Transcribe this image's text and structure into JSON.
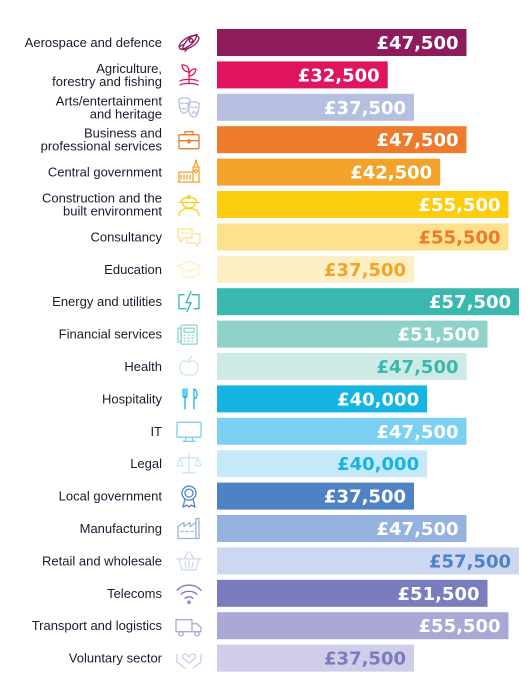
{
  "chart_data": {
    "type": "bar",
    "orientation": "horizontal",
    "xlim": [
      0,
      57500
    ],
    "categories": [
      [
        "Aerospace and defence"
      ],
      [
        "Agriculture,",
        "forestry and fishing"
      ],
      [
        "Arts/entertainment",
        "and heritage"
      ],
      [
        "Business and",
        "professional services"
      ],
      [
        "Central government"
      ],
      [
        "Construction and the",
        "built environment"
      ],
      [
        "Consultancy"
      ],
      [
        "Education"
      ],
      [
        "Energy and utilities"
      ],
      [
        "Financial services"
      ],
      [
        "Health"
      ],
      [
        "Hospitality"
      ],
      [
        "IT"
      ],
      [
        "Legal"
      ],
      [
        "Local government"
      ],
      [
        "Manufacturing"
      ],
      [
        "Retail and wholesale"
      ],
      [
        "Telecoms"
      ],
      [
        "Transport and logistics"
      ],
      [
        "Voluntary sector"
      ]
    ],
    "values": [
      47500,
      32500,
      37500,
      47500,
      42500,
      55500,
      55500,
      37500,
      57500,
      51500,
      47500,
      40000,
      47500,
      40000,
      37500,
      47500,
      57500,
      51500,
      55500,
      37500
    ],
    "value_labels": [
      "£47,500",
      "£32,500",
      "£37,500",
      "£47,500",
      "£42,500",
      "£55,500",
      "£55,500",
      "£37,500",
      "£57,500",
      "£51,500",
      "£47,500",
      "£40,000",
      "£47,500",
      "£40,000",
      "£37,500",
      "£47,500",
      "£57,500",
      "£51,500",
      "£55,500",
      "£37,500"
    ],
    "bar_colors": [
      "#8e1b5c",
      "#e0135e",
      "#b5bfe0",
      "#ee7a2b",
      "#f4a32a",
      "#fbcd0c",
      "#fde18c",
      "#fdf0c4",
      "#3ab8ad",
      "#8fd2c9",
      "#cdeae6",
      "#15b5e3",
      "#7cd0f1",
      "#c6e9f9",
      "#4f82c4",
      "#96b3df",
      "#ccd8ef",
      "#7a7cbe",
      "#a9a8d6",
      "#cfcde9"
    ],
    "label_colors": [
      "#ffffff",
      "#ffffff",
      "#ffffff",
      "#ffffff",
      "#ffffff",
      "#ffffff",
      "#ee7a2b",
      "#f4a32a",
      "#ffffff",
      "#ffffff",
      "#3ab8ad",
      "#ffffff",
      "#ffffff",
      "#15b5e3",
      "#ffffff",
      "#ffffff",
      "#4f82c4",
      "#ffffff",
      "#ffffff",
      "#7a7cbe"
    ],
    "icons": [
      "rocket-icon",
      "plant-icon",
      "theatre-masks-icon",
      "briefcase-icon",
      "government-building-icon",
      "hard-hat-worker-icon",
      "speech-bubbles-icon",
      "graduation-cap-icon",
      "energy-plug-icon",
      "calculator-icon",
      "apple-icon",
      "cutlery-icon",
      "monitor-icon",
      "scales-icon",
      "rosette-icon",
      "factory-icon",
      "shopping-basket-icon",
      "wifi-icon",
      "truck-icon",
      "heart-hands-icon"
    ]
  }
}
